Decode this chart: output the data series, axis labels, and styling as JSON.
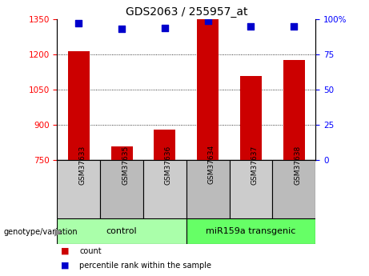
{
  "title": "GDS2063 / 255957_at",
  "categories": [
    "GSM37633",
    "GSM37635",
    "GSM37636",
    "GSM37634",
    "GSM37637",
    "GSM37638"
  ],
  "bar_values": [
    1215,
    810,
    880,
    1350,
    1110,
    1175
  ],
  "percentile_values": [
    97,
    93,
    94,
    99,
    95,
    95
  ],
  "bar_color": "#cc0000",
  "dot_color": "#0000cc",
  "ylim_left": [
    750,
    1350
  ],
  "ylim_right": [
    0,
    100
  ],
  "yticks_left": [
    750,
    900,
    1050,
    1200,
    1350
  ],
  "yticks_right": [
    0,
    25,
    50,
    75,
    100
  ],
  "yticklabels_right": [
    "0",
    "25",
    "50",
    "75",
    "100%"
  ],
  "grid_values": [
    900,
    1050,
    1200
  ],
  "control_label": "control",
  "transgenic_label": "miR159a transgenic",
  "genotype_label": "genotype/variation",
  "legend_count": "count",
  "legend_percentile": "percentile rank within the sample",
  "control_indices": [
    0,
    1,
    2
  ],
  "transgenic_indices": [
    3,
    4,
    5
  ],
  "bar_width": 0.5,
  "dot_size": 30,
  "group_box_color_control": "#aaffaa",
  "group_box_color_transgenic": "#66ff66",
  "tick_label_area_color": "#cccccc",
  "tick_label_area_color2": "#bbbbbb"
}
